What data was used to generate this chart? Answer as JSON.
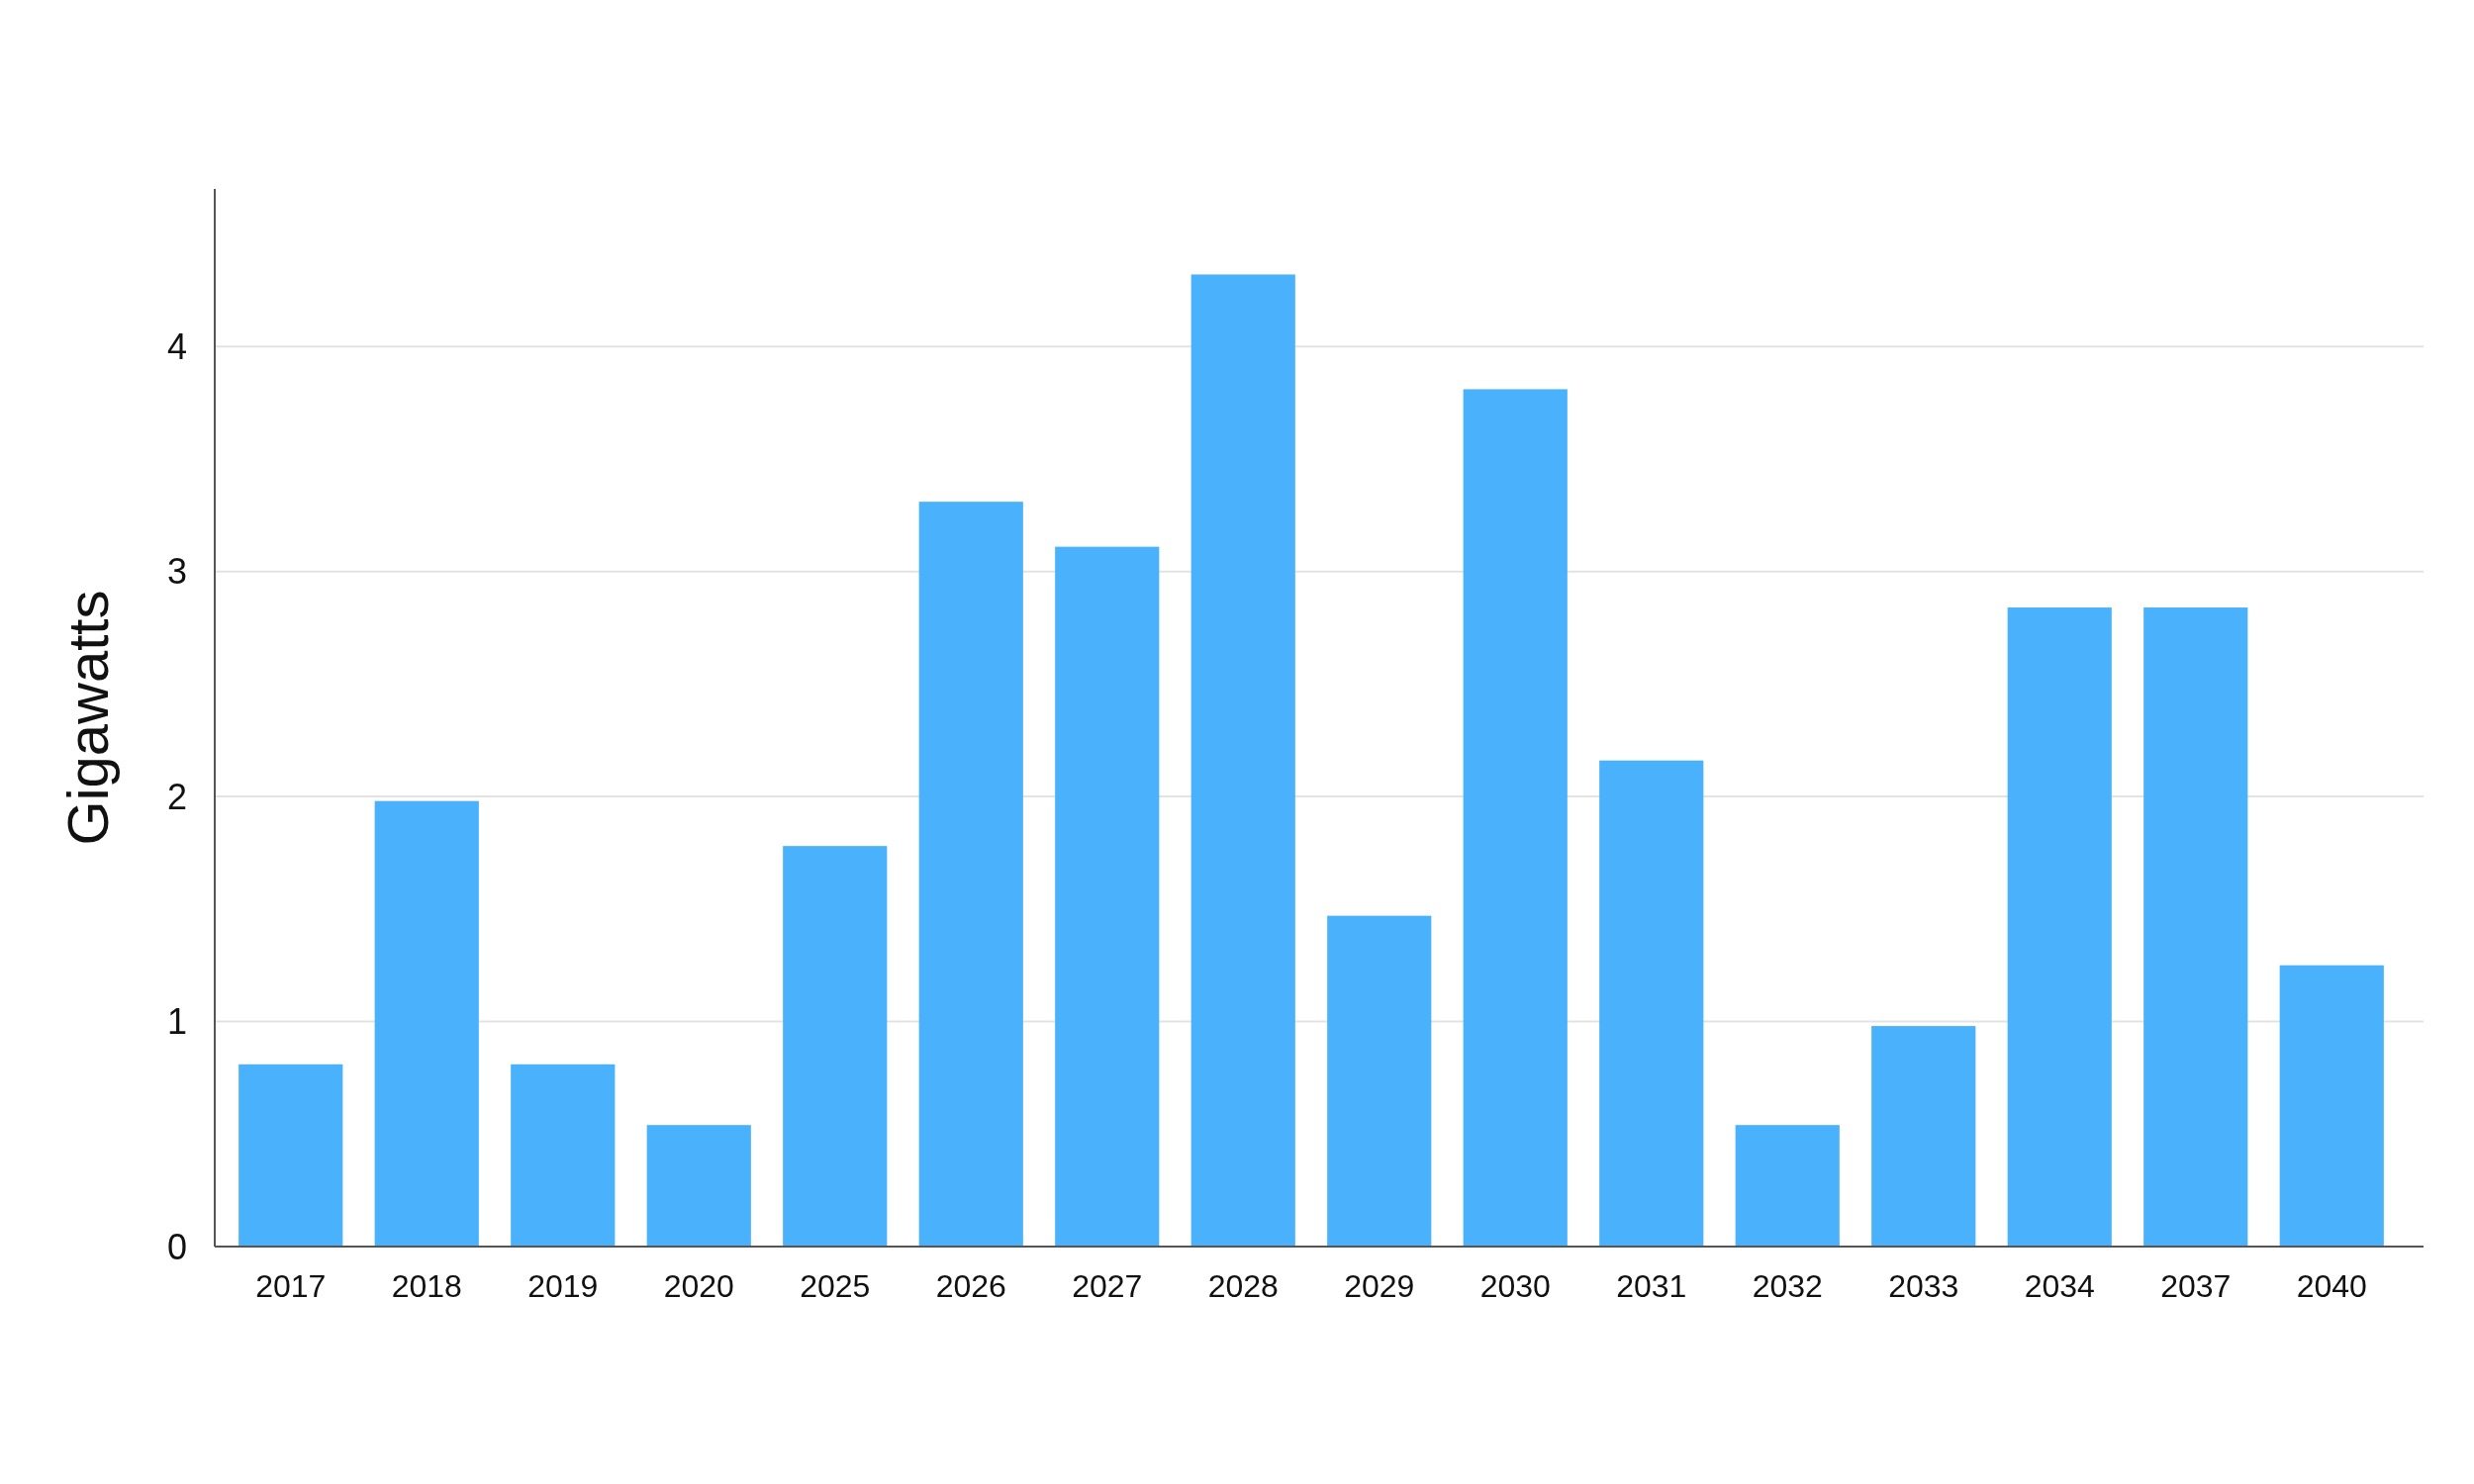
{
  "chart_data": {
    "type": "bar",
    "ylabel": "Gigawatts",
    "categories": [
      "2017",
      "2018",
      "2019",
      "2020",
      "2025",
      "2026",
      "2027",
      "2028",
      "2029",
      "2030",
      "2031",
      "2032",
      "2033",
      "2034",
      "2037",
      "2040"
    ],
    "values": [
      0.81,
      1.98,
      0.81,
      0.54,
      1.78,
      3.31,
      3.11,
      4.32,
      1.47,
      3.81,
      2.16,
      0.54,
      0.98,
      2.84,
      2.84,
      1.25
    ],
    "color": "#4ab1fc",
    "ylim": [
      0,
      4.7
    ],
    "yticks": [
      0,
      1,
      2,
      3,
      4
    ],
    "grid": "y"
  }
}
